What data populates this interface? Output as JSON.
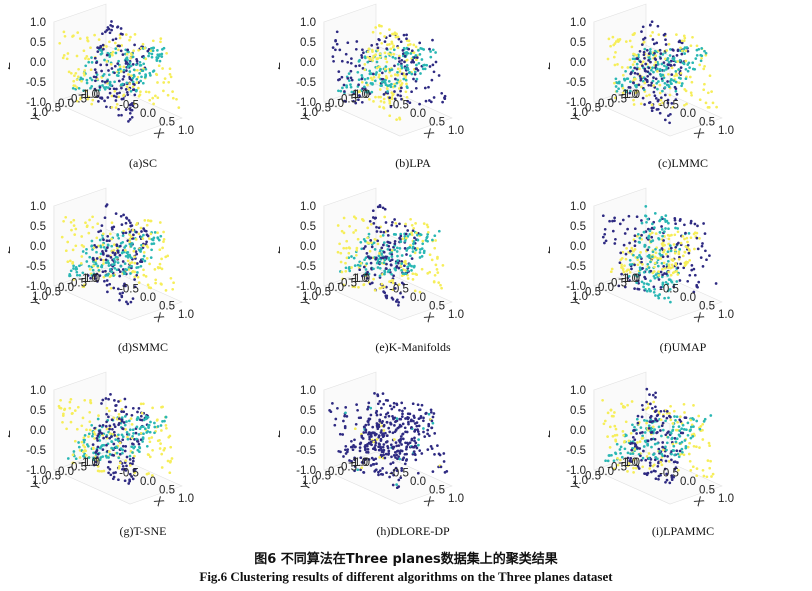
{
  "figure": {
    "title_cn": "图6   不同算法在Three planes数据集上的聚类结果",
    "title_en": "Fig.6    Clustering results of different algorithms on the Three planes dataset"
  },
  "colors": {
    "cluster_1": "#2e2a82",
    "cluster_2": "#2ab7b4",
    "cluster_3": "#f6ee5a",
    "axis": "#555555",
    "grid": "#e2e2e2"
  },
  "chart_data": [
    {
      "type": "scatter",
      "caption": "(a)SC",
      "xlabel": "X",
      "ylabel": "Y",
      "zlabel": "Z",
      "xlim": [
        -1.0,
        1.0
      ],
      "ylim": [
        -1.0,
        1.0
      ],
      "zlim": [
        -1.0,
        1.0
      ],
      "x_ticks": [
        "-0.5",
        "0.0",
        "0.5",
        "1.0"
      ],
      "y_ticks": [
        "1.0",
        "0.5",
        "0.0",
        "-0.5",
        "-1.0"
      ],
      "z_ticks": [
        "1.0",
        "0.5",
        "0.0",
        "-0.5",
        "-1.0"
      ],
      "clusters": 3,
      "assignment": [
        "cluster_1",
        "cluster_2",
        "cluster_3"
      ]
    },
    {
      "type": "scatter",
      "caption": "(b)LPA",
      "xlabel": "X",
      "ylabel": "Y",
      "zlabel": "Z",
      "xlim": [
        -1.0,
        1.0
      ],
      "ylim": [
        -1.0,
        1.0
      ],
      "zlim": [
        -1.0,
        1.0
      ],
      "x_ticks": [
        "-0.5",
        "0.0",
        "0.5",
        "1.0"
      ],
      "y_ticks": [
        "1.0",
        "0.5",
        "0.0",
        "-0.5",
        "-1.0"
      ],
      "z_ticks": [
        "1.0",
        "0.5",
        "0.0",
        "-0.5",
        "-1.0"
      ],
      "clusters": 3,
      "assignment": [
        "cluster_3",
        "cluster_2",
        "cluster_1"
      ]
    },
    {
      "type": "scatter",
      "caption": "(c)LMMC",
      "xlabel": "X",
      "ylabel": "Y",
      "zlabel": "Z",
      "xlim": [
        -1.0,
        1.0
      ],
      "ylim": [
        -1.0,
        1.0
      ],
      "zlim": [
        -1.0,
        1.0
      ],
      "x_ticks": [
        "-0.5",
        "0.0",
        "0.5",
        "1.0"
      ],
      "y_ticks": [
        "1.0",
        "0.5",
        "0.0",
        "-0.5",
        "-1.0"
      ],
      "z_ticks": [
        "1.0",
        "0.5",
        "0.0",
        "-0.5",
        "-1.0"
      ],
      "clusters": 3,
      "assignment": [
        "cluster_1",
        "cluster_2",
        "cluster_3"
      ]
    },
    {
      "type": "scatter",
      "caption": "(d)SMMC",
      "xlabel": "X",
      "ylabel": "Y",
      "zlabel": "Z",
      "xlim": [
        -1.0,
        1.0
      ],
      "ylim": [
        -1.0,
        1.0
      ],
      "zlim": [
        -1.0,
        1.0
      ],
      "x_ticks": [
        "-0.5",
        "0.0",
        "0.5",
        "1.0"
      ],
      "y_ticks": [
        "1.0",
        "0.5",
        "0.0",
        "-0.5",
        "-1.0"
      ],
      "z_ticks": [
        "1.0",
        "0.5",
        "0.0",
        "-0.5",
        "-1.0"
      ],
      "clusters": 3,
      "assignment": [
        "cluster_1",
        "cluster_2",
        "cluster_3"
      ]
    },
    {
      "type": "scatter",
      "caption": "(e)K-Manifolds",
      "xlabel": "X",
      "ylabel": "Y",
      "zlabel": "Z",
      "xlim": [
        -1.0,
        1.0
      ],
      "ylim": [
        -1.0,
        1.0
      ],
      "zlim": [
        -1.0,
        1.0
      ],
      "x_ticks": [
        "-0.5",
        "0.0",
        "0.5",
        "1.0"
      ],
      "y_ticks": [
        "1.0",
        "0.5",
        "0.0",
        "-0.5",
        "-1.0"
      ],
      "z_ticks": [
        "1.0",
        "0.5",
        "0.0",
        "-0.5",
        "-1.0"
      ],
      "clusters": 3,
      "assignment": [
        "cluster_1",
        "cluster_2",
        "cluster_3"
      ]
    },
    {
      "type": "scatter",
      "caption": "(f)UMAP",
      "xlabel": "X",
      "ylabel": "Y",
      "zlabel": "Z",
      "xlim": [
        -1.0,
        1.0
      ],
      "ylim": [
        -1.0,
        1.0
      ],
      "zlim": [
        -1.0,
        1.0
      ],
      "x_ticks": [
        "-0.5",
        "0.0",
        "0.5",
        "1.0"
      ],
      "y_ticks": [
        "1.0",
        "0.5",
        "0.0",
        "-0.5",
        "-1.0"
      ],
      "z_ticks": [
        "1.0",
        "0.5",
        "0.0",
        "-0.5",
        "-1.0"
      ],
      "clusters": 3,
      "assignment": [
        "cluster_2",
        "cluster_3",
        "cluster_1"
      ]
    },
    {
      "type": "scatter",
      "caption": "(g)T-SNE",
      "xlabel": "X",
      "ylabel": "Y",
      "zlabel": "Z",
      "xlim": [
        -1.0,
        1.0
      ],
      "ylim": [
        -1.0,
        1.0
      ],
      "zlim": [
        -1.0,
        1.0
      ],
      "x_ticks": [
        "-0.5",
        "0.0",
        "0.5",
        "1.0"
      ],
      "y_ticks": [
        "1.0",
        "0.5",
        "0.0",
        "-0.5",
        "-1.0"
      ],
      "z_ticks": [
        "1.0",
        "0.5",
        "0.0",
        "-0.5",
        "-1.0"
      ],
      "clusters": 3,
      "assignment": [
        "cluster_1",
        "cluster_2",
        "cluster_3"
      ]
    },
    {
      "type": "scatter",
      "caption": "(h)DLORE-DP",
      "xlabel": "X",
      "ylabel": "Y",
      "zlabel": "Z",
      "xlim": [
        -1.0,
        1.0
      ],
      "ylim": [
        -1.0,
        1.0
      ],
      "zlim": [
        -1.0,
        1.0
      ],
      "x_ticks": [
        "-0.5",
        "0.0",
        "0.5",
        "1.0"
      ],
      "y_ticks": [
        "1.0",
        "0.5",
        "0.0",
        "-0.5",
        "-1.0"
      ],
      "z_ticks": [
        "1.0",
        "0.5",
        "0.0",
        "-0.5",
        "-1.0"
      ],
      "clusters": 3,
      "assignment": [
        "cluster_1",
        "cluster_1",
        "cluster_1"
      ],
      "minor_clusters": [
        "cluster_2",
        "cluster_3"
      ]
    },
    {
      "type": "scatter",
      "caption": "(i)LPAMMC",
      "xlabel": "X",
      "ylabel": "Y",
      "zlabel": "Z",
      "xlim": [
        -1.0,
        1.0
      ],
      "ylim": [
        -1.0,
        1.0
      ],
      "zlim": [
        -1.0,
        1.0
      ],
      "x_ticks": [
        "-0.5",
        "0.0",
        "0.5",
        "1.0"
      ],
      "y_ticks": [
        "1.0",
        "0.5",
        "0.0",
        "-0.5",
        "-1.0"
      ],
      "z_ticks": [
        "1.0",
        "0.5",
        "0.0",
        "-0.5",
        "-1.0"
      ],
      "clusters": 3,
      "assignment": [
        "cluster_1",
        "cluster_2",
        "cluster_3"
      ]
    }
  ]
}
